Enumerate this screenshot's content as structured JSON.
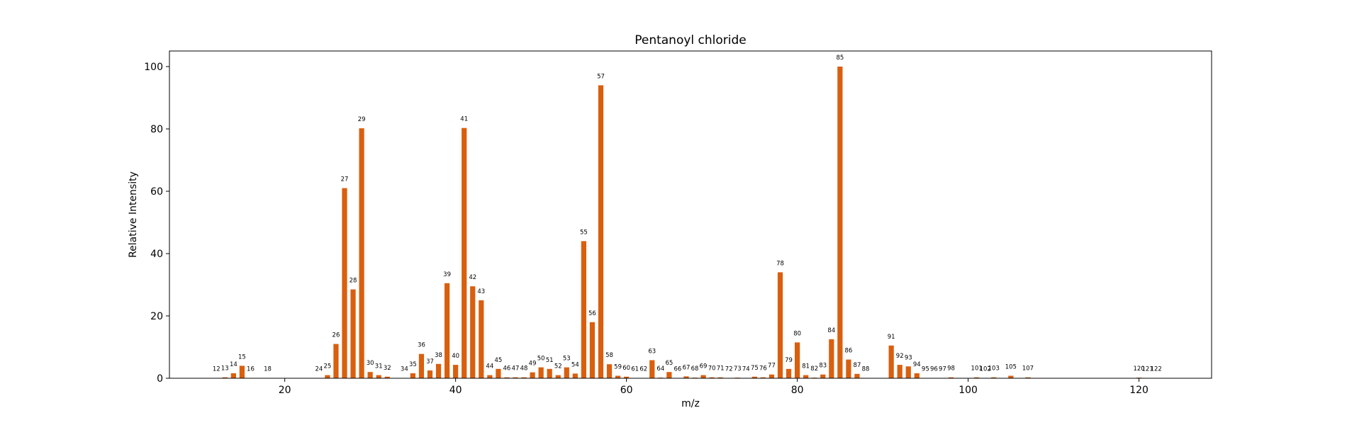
{
  "chart_data": {
    "type": "bar",
    "title": "Pentanoyl chloride",
    "xlabel": "m/z",
    "ylabel": "Relative Intensity",
    "xlim": [
      6.5,
      128.5
    ],
    "ylim": [
      0,
      105
    ],
    "xticks": [
      20,
      40,
      60,
      80,
      100,
      120
    ],
    "yticks": [
      0,
      20,
      40,
      60,
      80,
      100
    ],
    "grid": false,
    "bar_color": "#d95f0e",
    "x": [
      12,
      13,
      14,
      15,
      16,
      18,
      24,
      25,
      26,
      27,
      28,
      29,
      30,
      31,
      32,
      34,
      35,
      36,
      37,
      38,
      39,
      40,
      41,
      42,
      43,
      44,
      45,
      46,
      47,
      48,
      49,
      50,
      51,
      52,
      53,
      54,
      55,
      56,
      57,
      58,
      59,
      60,
      61,
      62,
      63,
      64,
      65,
      66,
      67,
      68,
      69,
      70,
      71,
      72,
      73,
      74,
      75,
      76,
      77,
      78,
      79,
      80,
      81,
      82,
      83,
      84,
      85,
      86,
      87,
      88,
      91,
      92,
      93,
      94,
      95,
      96,
      97,
      98,
      101,
      102,
      103,
      105,
      107,
      120,
      121,
      122
    ],
    "values": [
      0.1,
      0.3,
      1.6,
      4.0,
      0.1,
      0.1,
      0.1,
      1.0,
      11.0,
      61.0,
      28.5,
      80.2,
      2.0,
      1.0,
      0.5,
      0.1,
      1.6,
      7.8,
      2.5,
      4.6,
      30.5,
      4.3,
      80.3,
      29.5,
      25.0,
      1.0,
      3.0,
      0.3,
      0.3,
      0.3,
      1.9,
      3.5,
      3.0,
      1.0,
      3.5,
      1.5,
      44.0,
      18.0,
      94.0,
      4.5,
      0.8,
      0.5,
      0.1,
      0.1,
      5.8,
      0.2,
      2.0,
      0.1,
      0.6,
      0.2,
      1.0,
      0.3,
      0.3,
      0.1,
      0.2,
      0.1,
      0.5,
      0.3,
      1.2,
      34.0,
      3.0,
      11.5,
      1.0,
      0.2,
      1.2,
      12.5,
      100,
      6.0,
      1.4,
      0.1,
      10.5,
      4.3,
      3.8,
      1.6,
      0.1,
      0.1,
      0.1,
      0.3,
      0.3,
      0.1,
      0.3,
      0.8,
      0.3,
      0.2,
      0.1,
      0.1
    ]
  }
}
